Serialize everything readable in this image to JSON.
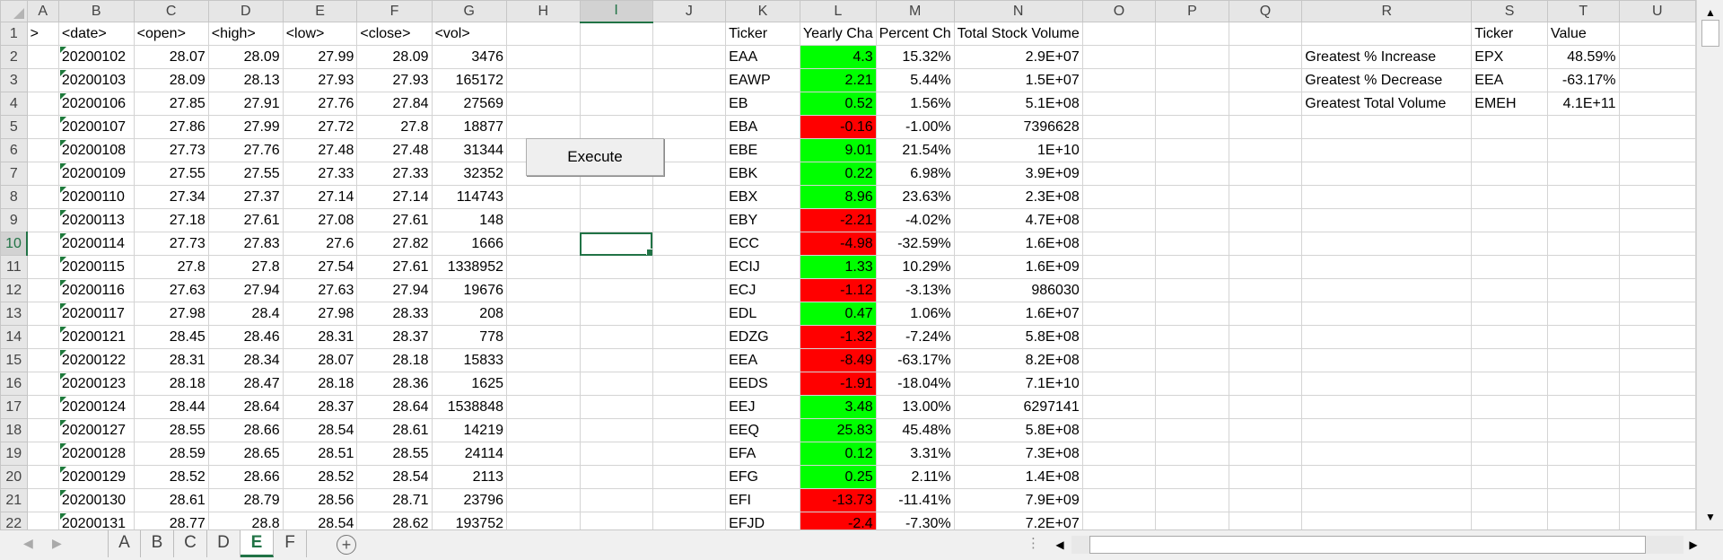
{
  "columns": [
    "A",
    "B",
    "C",
    "D",
    "E",
    "F",
    "G",
    "H",
    "I",
    "J",
    "K",
    "L",
    "M",
    "N",
    "O",
    "P",
    "Q",
    "R",
    "S",
    "T",
    "U"
  ],
  "selected_column": "I",
  "selected_row": 10,
  "active_cell": "I10",
  "button": {
    "label": "Execute"
  },
  "rows": [
    {
      "n": "1",
      "A": ">",
      "B": "<date>",
      "C": "<open>",
      "D": "<high>",
      "E": "<low>",
      "F": "<close>",
      "G": "<vol>",
      "K": "Ticker",
      "L": "Yearly Cha",
      "M": "Percent Ch",
      "N": "Total Stock Volume",
      "S": "Ticker",
      "T": "Value"
    },
    {
      "n": "2",
      "B": "20200102",
      "C": "28.07",
      "D": "28.09",
      "E": "27.99",
      "F": "28.09",
      "G": "3476",
      "K": "EAA",
      "L": "4.3",
      "M": "15.32%",
      "N": "2.9E+07",
      "R": "Greatest % Increase",
      "S": "EPX",
      "T": "48.59%",
      "L_color": "green"
    },
    {
      "n": "3",
      "B": "20200103",
      "C": "28.09",
      "D": "28.13",
      "E": "27.93",
      "F": "27.93",
      "G": "165172",
      "K": "EAWP",
      "L": "2.21",
      "M": "5.44%",
      "N": "1.5E+07",
      "R": "Greatest % Decrease",
      "S": "EEA",
      "T": "-63.17%",
      "L_color": "green"
    },
    {
      "n": "4",
      "B": "20200106",
      "C": "27.85",
      "D": "27.91",
      "E": "27.76",
      "F": "27.84",
      "G": "27569",
      "K": "EB",
      "L": "0.52",
      "M": "1.56%",
      "N": "5.1E+08",
      "R": "Greatest Total Volume",
      "S": "EMEH",
      "T": "4.1E+11",
      "L_color": "green"
    },
    {
      "n": "5",
      "B": "20200107",
      "C": "27.86",
      "D": "27.99",
      "E": "27.72",
      "F": "27.8",
      "G": "18877",
      "K": "EBA",
      "L": "-0.16",
      "M": "-1.00%",
      "N": "7396628",
      "L_color": "red"
    },
    {
      "n": "6",
      "B": "20200108",
      "C": "27.73",
      "D": "27.76",
      "E": "27.48",
      "F": "27.48",
      "G": "31344",
      "K": "EBE",
      "L": "9.01",
      "M": "21.54%",
      "N": "1E+10",
      "L_color": "green"
    },
    {
      "n": "7",
      "B": "20200109",
      "C": "27.55",
      "D": "27.55",
      "E": "27.33",
      "F": "27.33",
      "G": "32352",
      "K": "EBK",
      "L": "0.22",
      "M": "6.98%",
      "N": "3.9E+09",
      "L_color": "green"
    },
    {
      "n": "8",
      "B": "20200110",
      "C": "27.34",
      "D": "27.37",
      "E": "27.14",
      "F": "27.14",
      "G": "114743",
      "K": "EBX",
      "L": "8.96",
      "M": "23.63%",
      "N": "2.3E+08",
      "L_color": "green"
    },
    {
      "n": "9",
      "B": "20200113",
      "C": "27.18",
      "D": "27.61",
      "E": "27.08",
      "F": "27.61",
      "G": "148",
      "K": "EBY",
      "L": "-2.21",
      "M": "-4.02%",
      "N": "4.7E+08",
      "L_color": "red"
    },
    {
      "n": "10",
      "B": "20200114",
      "C": "27.73",
      "D": "27.83",
      "E": "27.6",
      "F": "27.82",
      "G": "1666",
      "K": "ECC",
      "L": "-4.98",
      "M": "-32.59%",
      "N": "1.6E+08",
      "L_color": "red"
    },
    {
      "n": "11",
      "B": "20200115",
      "C": "27.8",
      "D": "27.8",
      "E": "27.54",
      "F": "27.61",
      "G": "1338952",
      "K": "ECIJ",
      "L": "1.33",
      "M": "10.29%",
      "N": "1.6E+09",
      "L_color": "green"
    },
    {
      "n": "12",
      "B": "20200116",
      "C": "27.63",
      "D": "27.94",
      "E": "27.63",
      "F": "27.94",
      "G": "19676",
      "K": "ECJ",
      "L": "-1.12",
      "M": "-3.13%",
      "N": "986030",
      "L_color": "red"
    },
    {
      "n": "13",
      "B": "20200117",
      "C": "27.98",
      "D": "28.4",
      "E": "27.98",
      "F": "28.33",
      "G": "208",
      "K": "EDL",
      "L": "0.47",
      "M": "1.06%",
      "N": "1.6E+07",
      "L_color": "green"
    },
    {
      "n": "14",
      "B": "20200121",
      "C": "28.45",
      "D": "28.46",
      "E": "28.31",
      "F": "28.37",
      "G": "778",
      "K": "EDZG",
      "L": "-1.32",
      "M": "-7.24%",
      "N": "5.8E+08",
      "L_color": "red"
    },
    {
      "n": "15",
      "B": "20200122",
      "C": "28.31",
      "D": "28.34",
      "E": "28.07",
      "F": "28.18",
      "G": "15833",
      "K": "EEA",
      "L": "-8.49",
      "M": "-63.17%",
      "N": "8.2E+08",
      "L_color": "red"
    },
    {
      "n": "16",
      "B": "20200123",
      "C": "28.18",
      "D": "28.47",
      "E": "28.18",
      "F": "28.36",
      "G": "1625",
      "K": "EEDS",
      "L": "-1.91",
      "M": "-18.04%",
      "N": "7.1E+10",
      "L_color": "red"
    },
    {
      "n": "17",
      "B": "20200124",
      "C": "28.44",
      "D": "28.64",
      "E": "28.37",
      "F": "28.64",
      "G": "1538848",
      "K": "EEJ",
      "L": "3.48",
      "M": "13.00%",
      "N": "6297141",
      "L_color": "green"
    },
    {
      "n": "18",
      "B": "20200127",
      "C": "28.55",
      "D": "28.66",
      "E": "28.54",
      "F": "28.61",
      "G": "14219",
      "K": "EEQ",
      "L": "25.83",
      "M": "45.48%",
      "N": "5.8E+08",
      "L_color": "green"
    },
    {
      "n": "19",
      "B": "20200128",
      "C": "28.59",
      "D": "28.65",
      "E": "28.51",
      "F": "28.55",
      "G": "24114",
      "K": "EFA",
      "L": "0.12",
      "M": "3.31%",
      "N": "7.3E+08",
      "L_color": "green"
    },
    {
      "n": "20",
      "B": "20200129",
      "C": "28.52",
      "D": "28.66",
      "E": "28.52",
      "F": "28.54",
      "G": "2113",
      "K": "EFG",
      "L": "0.25",
      "M": "2.11%",
      "N": "1.4E+08",
      "L_color": "green"
    },
    {
      "n": "21",
      "B": "20200130",
      "C": "28.61",
      "D": "28.79",
      "E": "28.56",
      "F": "28.71",
      "G": "23796",
      "K": "EFI",
      "L": "-13.73",
      "M": "-11.41%",
      "N": "7.9E+09",
      "L_color": "red"
    },
    {
      "n": "22",
      "B": "20200131",
      "C": "28.77",
      "D": "28.8",
      "E": "28.54",
      "F": "28.62",
      "G": "193752",
      "K": "EFJD",
      "L": "-2.4",
      "M": "-7.30%",
      "N": "7.2E+07",
      "L_color": "red"
    }
  ],
  "sheet_tabs": [
    "A",
    "B",
    "C",
    "D",
    "E",
    "F"
  ],
  "active_tab": "E",
  "icons": {
    "tab_prev": "◀",
    "tab_next": "▶",
    "add_sheet": "+",
    "scroll_up": "▲",
    "scroll_down": "▼",
    "scroll_left": "◀",
    "scroll_right": "▶",
    "tab_split": "⋮"
  },
  "colors": {
    "accent": "#217346",
    "positive_fill": "#00ff00",
    "negative_fill": "#ff0000"
  }
}
